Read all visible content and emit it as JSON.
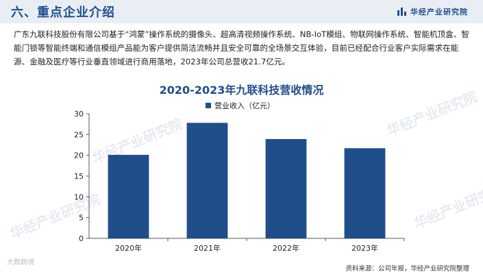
{
  "header": {
    "section_title": "六、重点企业介绍",
    "brand": "华经产业研究院",
    "brand_icon": "bar-logo-icon",
    "accent_color": "#1f4e8a"
  },
  "intro": "广东九联科技股份有限公司基于“鸿蒙”操作系统的摄像头、超高清视频操作系统、NB-IoT模组、物联网操作系统、智能机顶盒、智能门锁等智能终端和通信模组产品能为客户提供简洁流畅并且安全可靠的全场景交互体验，目前已经配合行业客户实际需求在能源、金融及医疗等行业垂直领域进行商用落地，2023年公司总营收21.7亿元。",
  "watermark": "华经产业研究院",
  "corner_mark": "大数跨境",
  "source": "资料来源：公司年报，华经产业研究院整理",
  "chart_data": {
    "type": "bar",
    "title": "2020-2023年九联科技营收情况",
    "categories": [
      "2020年",
      "2021年",
      "2022年",
      "2023年"
    ],
    "series": [
      {
        "name": "营业收入（亿元）",
        "values": [
          20.1,
          27.8,
          23.9,
          21.7
        ]
      }
    ],
    "ylim": [
      0,
      30
    ],
    "yticks": [
      0,
      5,
      10,
      15,
      20,
      25,
      30
    ],
    "grid": false,
    "legend": "top-center",
    "bar_color": "#1f4e8a"
  }
}
